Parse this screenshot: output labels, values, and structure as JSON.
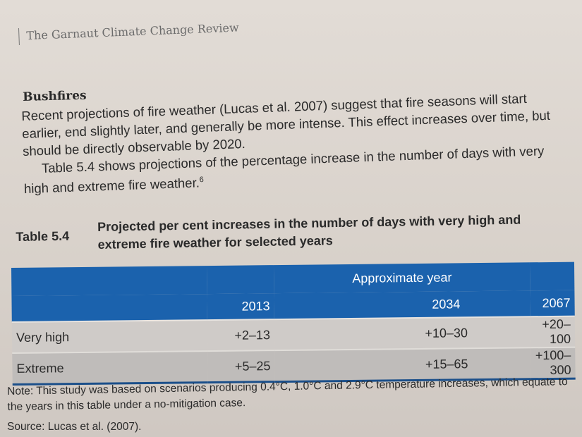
{
  "running_header": "The Garnaut Climate Change Review",
  "section_heading": "Bushfires",
  "paragraphs": [
    "Recent projections of fire weather (Lucas et al. 2007) suggest that fire seasons will start earlier, end slightly later, and generally be more intense. This effect increases over time, but should be directly observable by 2020.",
    "Table 5.4 shows projections of the percentage increase in the number of days with very high and extreme fire weather."
  ],
  "footnote_ref": "6",
  "table": {
    "label": "Table 5.4",
    "caption": "Projected per cent increases in the number of days with very high and extreme fire weather for selected years",
    "group_header": "Approximate year",
    "columns": [
      "2013",
      "2034",
      "2067"
    ],
    "rows": [
      {
        "label": "Very high",
        "values": [
          "+2–13",
          "+10–30",
          "+20–100"
        ]
      },
      {
        "label": "Extreme",
        "values": [
          "+5–25",
          "+15–65",
          "+100–300"
        ]
      }
    ],
    "header_color": "#1b62ad"
  },
  "note": "Note: This study was based on scenarios producing 0.4°C, 1.0°C and 2.9°C temperature increases, which equate to the years in this table under a no-mitigation case.",
  "source": "Source: Lucas et al. (2007)."
}
